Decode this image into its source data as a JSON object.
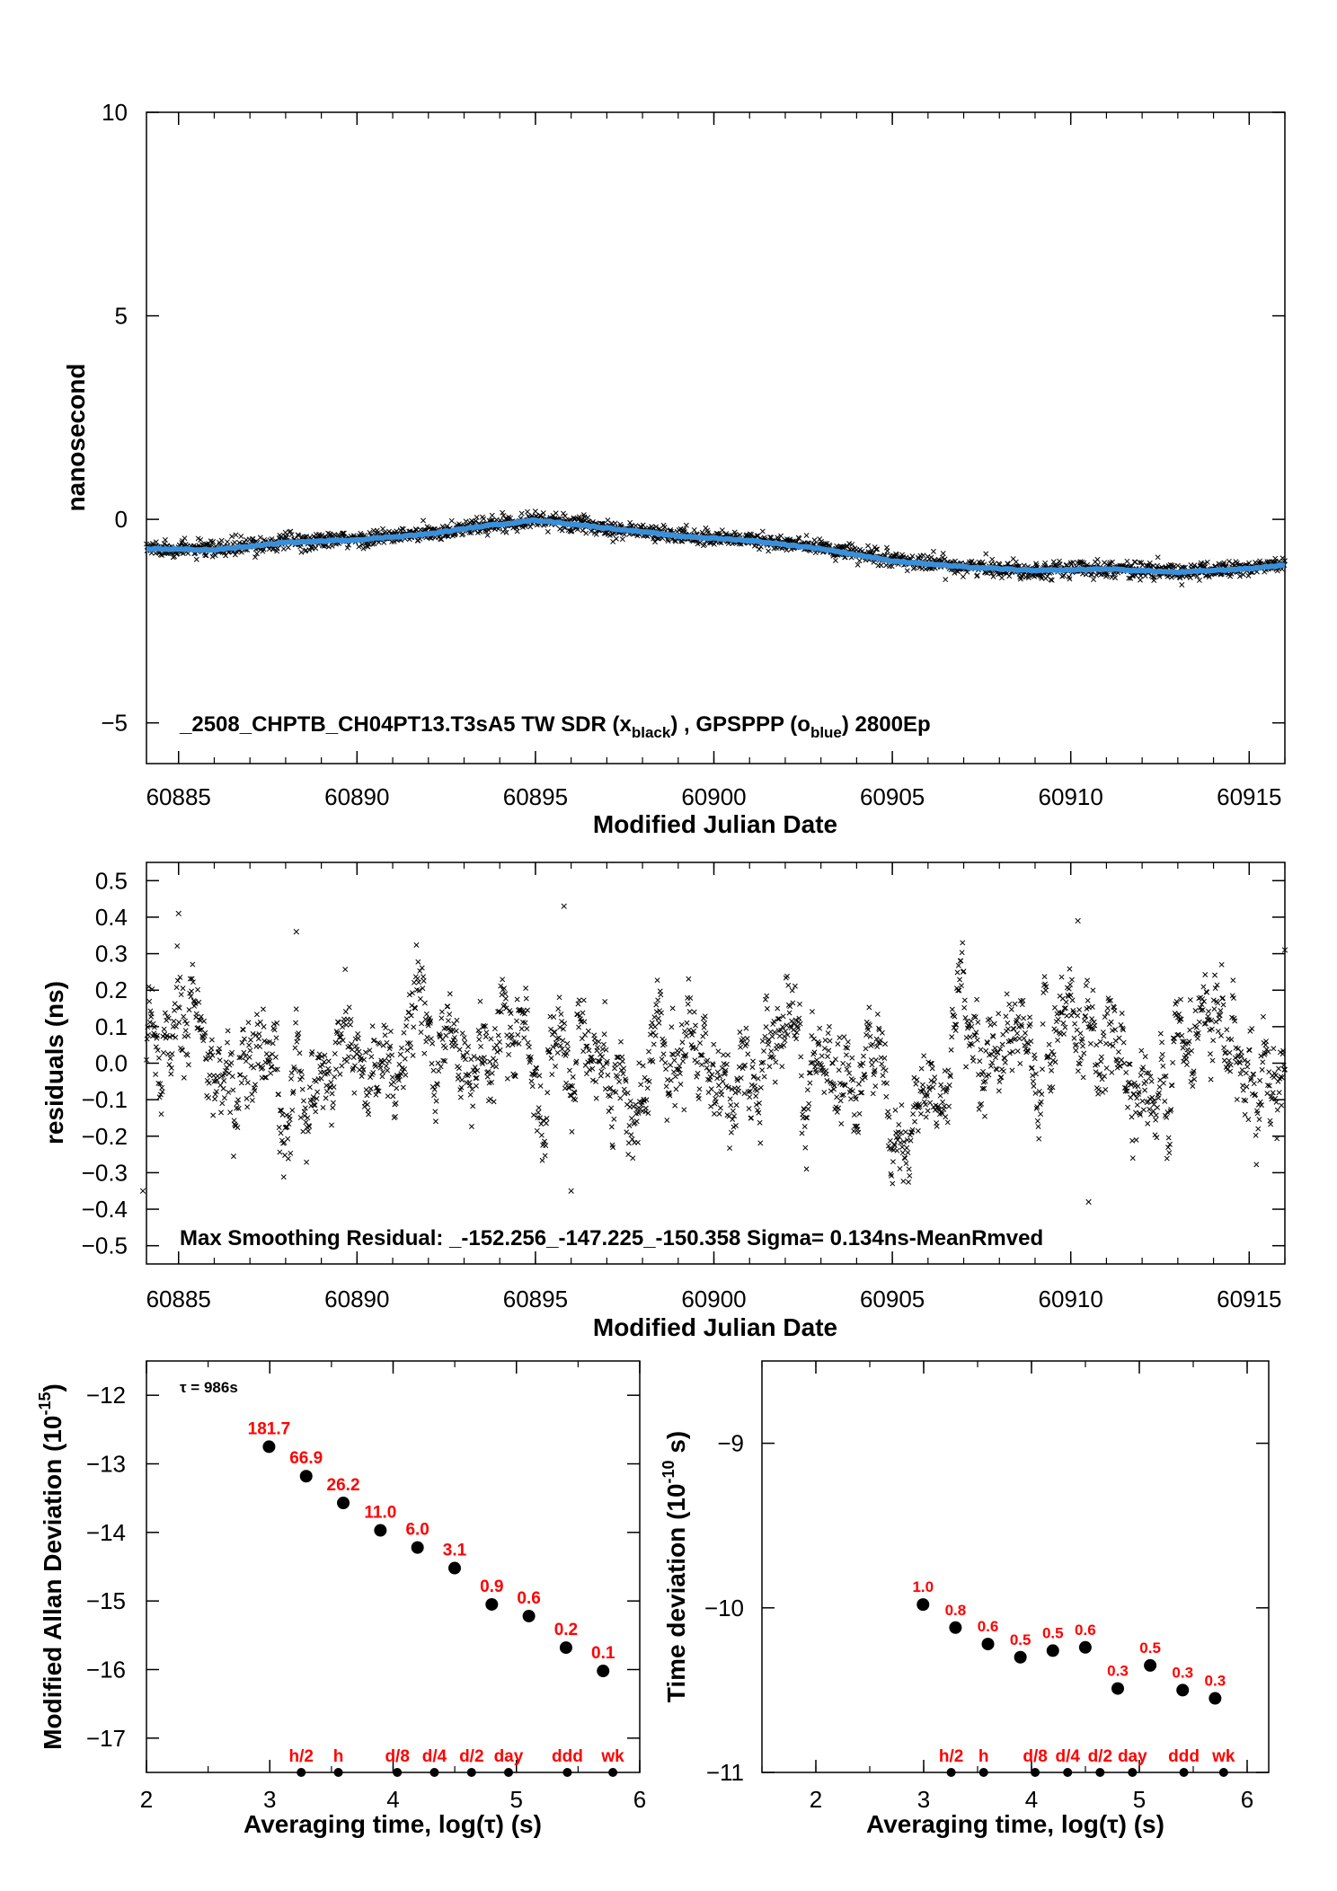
{
  "chart_data": [
    {
      "type": "scatter",
      "xlabel": "Modified Julian Date",
      "ylabel": "nanosecond",
      "xlim": [
        60884.1,
        60916.0
      ],
      "ylim": [
        -6,
        10
      ],
      "xticks": [
        "60885",
        "60890",
        "60895",
        "60900",
        "60905",
        "60910",
        "60915"
      ],
      "yticks": [
        "10",
        "5",
        "0",
        "−5"
      ],
      "ytick_values": [
        10,
        5,
        0,
        -5
      ],
      "annotation": {
        "prefix": "_2508_CHPTB_CH04PT13.T3sA5     TW SDR (x",
        "sub1": "black",
        "mid": ") ,  GPSPPP (o",
        "sub2": "blue",
        "suffix": ")  2800Ep"
      },
      "series": [
        {
          "name": "TW SDR",
          "color": "#000000",
          "marker": "x",
          "x": [
            60884.1,
            60886,
            60888,
            60890,
            60892,
            60893.5,
            60895,
            60897,
            60899,
            60901,
            60903,
            60905,
            60907,
            60909,
            60911,
            60913,
            60915,
            60916
          ],
          "y": [
            -0.7,
            -0.75,
            -0.55,
            -0.5,
            -0.35,
            -0.15,
            0.0,
            -0.2,
            -0.4,
            -0.5,
            -0.7,
            -1.0,
            -1.15,
            -1.25,
            -1.2,
            -1.3,
            -1.2,
            -1.1
          ]
        },
        {
          "name": "GPSPPP",
          "color": "#3a8fd9",
          "marker": "o",
          "x": [
            60884.1,
            60886,
            60888,
            60890,
            60892,
            60893.5,
            60895,
            60897,
            60899,
            60901,
            60903,
            60905,
            60907,
            60909,
            60911,
            60913,
            60915,
            60916
          ],
          "y": [
            -0.72,
            -0.75,
            -0.57,
            -0.5,
            -0.36,
            -0.17,
            -0.02,
            -0.21,
            -0.41,
            -0.52,
            -0.72,
            -1.02,
            -1.17,
            -1.26,
            -1.22,
            -1.3,
            -1.21,
            -1.12
          ]
        }
      ]
    },
    {
      "type": "scatter",
      "xlabel": "Modified Julian Date",
      "ylabel": "residuals (ns)",
      "xlim": [
        60884.1,
        60916.0
      ],
      "ylim": [
        -0.55,
        0.55
      ],
      "xticks": [
        "60885",
        "60890",
        "60895",
        "60900",
        "60905",
        "60910",
        "60915"
      ],
      "yticks": [
        "0.5",
        "0.4",
        "0.3",
        "0.2",
        "0.1",
        "0.0",
        "−0.1",
        "−0.2",
        "−0.3",
        "−0.4",
        "−0.5"
      ],
      "ytick_values": [
        0.5,
        0.4,
        0.3,
        0.2,
        0.1,
        0.0,
        -0.1,
        -0.2,
        -0.3,
        -0.4,
        -0.5
      ],
      "annotation": "Max Smoothing Residual: _-152.256_-147.225_-150.358  Sigma= 0.134ns-MeanRmved",
      "sigma": 0.134,
      "series": [
        {
          "color": "#000000",
          "marker": "x",
          "x": [
            60885.0,
            60888.3,
            60895.8,
            60910.2,
            60884.0,
            60896.0,
            60910.5,
            60916.0
          ],
          "y": [
            0.41,
            0.36,
            0.43,
            0.39,
            -0.35,
            -0.35,
            -0.38,
            0.31
          ]
        }
      ]
    },
    {
      "type": "scatter",
      "xlabel": "Averaging time, log(τ) (s)",
      "ylabel_main": "Modified Allan Deviation (10",
      "ylabel_sup": "-15",
      "ylabel_end": ")",
      "tau_note": "τ = 986s",
      "xlim": [
        2,
        6
      ],
      "ylim": [
        -17.5,
        -11.5
      ],
      "xticks": [
        "2",
        "3",
        "4",
        "5",
        "6"
      ],
      "yticks": [
        "−12",
        "−13",
        "−14",
        "−15",
        "−16",
        "−17"
      ],
      "ytick_values": [
        -12,
        -13,
        -14,
        -15,
        -16,
        -17
      ],
      "x": [
        2.994,
        3.295,
        3.596,
        3.897,
        4.198,
        4.499,
        4.8,
        5.101,
        5.402,
        5.703
      ],
      "y": [
        -12.75,
        -13.18,
        -13.57,
        -13.97,
        -14.22,
        -14.52,
        -15.05,
        -15.22,
        -15.68,
        -16.02
      ],
      "labels": [
        "181.7",
        "66.9",
        "26.2",
        "11.0",
        "6.0",
        "3.1",
        "0.9",
        "0.6",
        "0.2",
        "0.1"
      ],
      "markers": [
        {
          "label": "h/2",
          "x": 3.255
        },
        {
          "label": "h",
          "x": 3.556
        },
        {
          "label": "d/8",
          "x": 4.034
        },
        {
          "label": "d/4",
          "x": 4.335
        },
        {
          "label": "d/2",
          "x": 4.636
        },
        {
          "label": "day",
          "x": 4.936
        },
        {
          "label": "ddd",
          "x": 5.413
        },
        {
          "label": "wk",
          "x": 5.782
        }
      ]
    },
    {
      "type": "scatter",
      "xlabel": "Averaging time, log(τ) (s)",
      "ylabel_main": "Time deviation (10",
      "ylabel_sup": "-10",
      "ylabel_end": " s)",
      "xlim": [
        1.5,
        6.2
      ],
      "ylim": [
        -11,
        -8.5
      ],
      "xticks": [
        "2",
        "3",
        "4",
        "5",
        "6"
      ],
      "yticks": [
        "−9",
        "−10",
        "−11"
      ],
      "ytick_values": [
        -9,
        -10,
        -11
      ],
      "x": [
        2.994,
        3.295,
        3.596,
        3.897,
        4.198,
        4.499,
        4.8,
        5.101,
        5.402,
        5.703
      ],
      "y": [
        -9.98,
        -10.12,
        -10.22,
        -10.3,
        -10.26,
        -10.24,
        -10.49,
        -10.35,
        -10.5,
        -10.55
      ],
      "labels": [
        "1.0",
        "0.8",
        "0.6",
        "0.5",
        "0.5",
        "0.6",
        "0.3",
        "0.5",
        "0.3",
        "0.3"
      ],
      "markers": [
        {
          "label": "h/2",
          "x": 3.255
        },
        {
          "label": "h",
          "x": 3.556
        },
        {
          "label": "d/8",
          "x": 4.034
        },
        {
          "label": "d/4",
          "x": 4.335
        },
        {
          "label": "d/2",
          "x": 4.636
        },
        {
          "label": "day",
          "x": 4.936
        },
        {
          "label": "ddd",
          "x": 5.413
        },
        {
          "label": "wk",
          "x": 5.782
        }
      ]
    }
  ]
}
